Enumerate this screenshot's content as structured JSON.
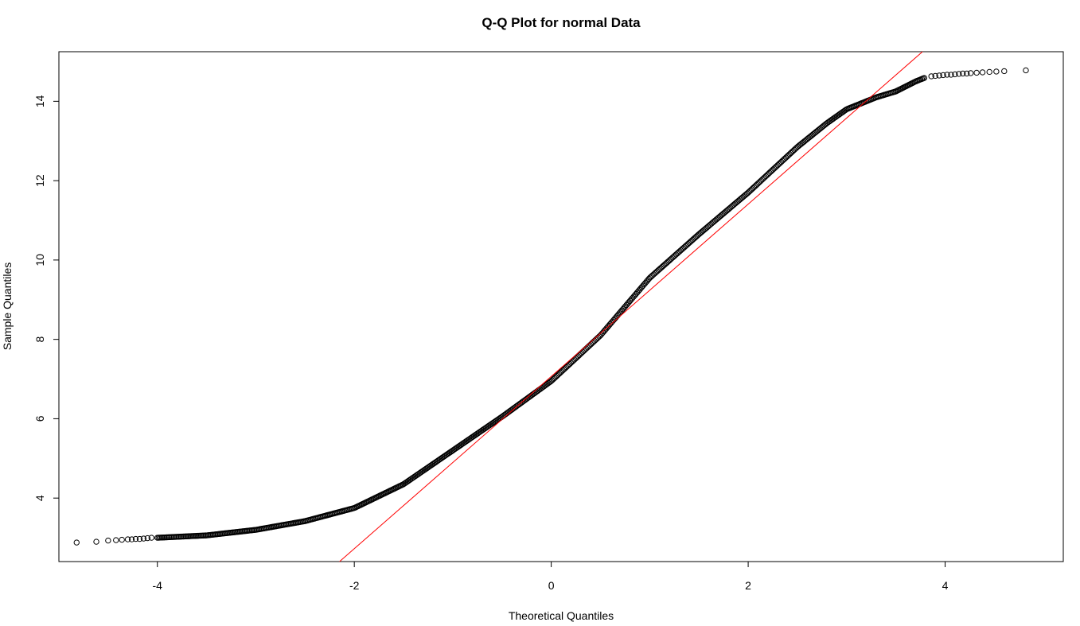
{
  "chart_data": {
    "type": "scatter",
    "title": "Q-Q Plot for normal Data",
    "xlabel": "Theoretical Quantiles",
    "ylabel": "Sample Quantiles",
    "xlim": [
      -5.0,
      5.2
    ],
    "ylim": [
      2.4,
      15.25
    ],
    "xticks": [
      -4,
      -2,
      0,
      2,
      4
    ],
    "yticks": [
      4,
      6,
      8,
      10,
      12,
      14
    ],
    "grid": false,
    "point_color": "#000000",
    "line_color": "#ff0000",
    "reference_line": {
      "x": [
        -2.15,
        3.77
      ],
      "y": [
        2.4,
        15.25
      ]
    },
    "curve_points": {
      "x": [
        -4.0,
        -3.5,
        -3.0,
        -2.5,
        -2.0,
        -1.5,
        -1.0,
        -0.5,
        0.0,
        0.5,
        1.0,
        1.5,
        2.0,
        2.5,
        2.8,
        3.0,
        3.3,
        3.5,
        3.7,
        3.8
      ],
      "y": [
        3.0,
        3.06,
        3.2,
        3.42,
        3.75,
        4.35,
        5.2,
        6.05,
        6.95,
        8.1,
        9.55,
        10.65,
        11.7,
        12.85,
        13.45,
        13.8,
        14.1,
        14.25,
        14.5,
        14.6
      ]
    },
    "tail_points": {
      "x": [
        -4.82,
        -4.62,
        -4.5,
        -4.42,
        -4.36,
        -4.3,
        -4.26,
        -4.22,
        -4.18,
        -4.14,
        -4.1,
        -4.06,
        3.86,
        3.9,
        3.94,
        3.98,
        4.02,
        4.06,
        4.1,
        4.14,
        4.18,
        4.22,
        4.26,
        4.32,
        4.38,
        4.45,
        4.52,
        4.6,
        4.82
      ],
      "y": [
        2.88,
        2.9,
        2.93,
        2.94,
        2.95,
        2.96,
        2.96,
        2.97,
        2.97,
        2.98,
        2.99,
        3.0,
        14.63,
        14.64,
        14.65,
        14.66,
        14.67,
        14.67,
        14.68,
        14.69,
        14.7,
        14.7,
        14.71,
        14.72,
        14.73,
        14.74,
        14.75,
        14.76,
        14.78
      ]
    }
  }
}
